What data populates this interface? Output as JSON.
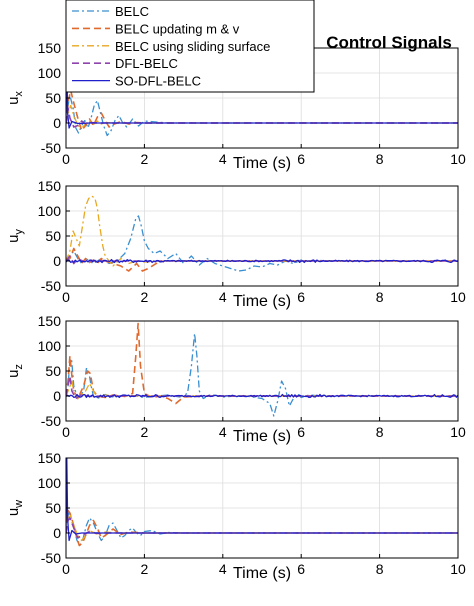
{
  "figure": {
    "title": "Control Signals"
  },
  "legend": {
    "placement": "top-left",
    "entries": [
      {
        "name": "BELC",
        "color": "#3a8fd1",
        "dash": "dash-dot"
      },
      {
        "name": "BELC updating m & v",
        "color": "#e06a2d",
        "dash": "dashed"
      },
      {
        "name": "BELC using sliding surface",
        "color": "#e8a820",
        "dash": "dash-dot"
      },
      {
        "name": "DFL-BELC",
        "color": "#8e44ad",
        "dash": "dashed"
      },
      {
        "name": "SO-DFL-BELC",
        "color": "#1f1fcc",
        "dash": "solid"
      }
    ]
  },
  "chart_data": [
    {
      "type": "line",
      "xlabel": "Time (s)",
      "ylabel_base": "u",
      "ylabel_sub": "x",
      "xlim": [
        0,
        10
      ],
      "ylim": [
        -50,
        150
      ],
      "xticks": [
        0,
        2,
        4,
        6,
        8,
        10
      ],
      "yticks": [
        -50,
        0,
        50,
        100,
        150
      ],
      "grid": true,
      "series": [
        {
          "name": "BELC",
          "x": [
            0,
            0.05,
            0.1,
            0.18,
            0.25,
            0.32,
            0.4,
            0.48,
            0.56,
            0.64,
            0.72,
            0.8,
            0.88,
            0.96,
            1.05,
            1.15,
            1.25,
            1.35,
            1.45,
            1.55,
            1.7,
            1.85,
            2.0,
            2.3,
            2.6,
            3,
            10
          ],
          "y": [
            0,
            35,
            55,
            30,
            -10,
            -20,
            -5,
            5,
            -10,
            10,
            35,
            45,
            20,
            -5,
            -25,
            -15,
            5,
            15,
            0,
            -8,
            8,
            -6,
            4,
            2,
            0,
            0,
            0
          ]
        },
        {
          "name": "BELC updating m & v",
          "x": [
            0,
            0.06,
            0.12,
            0.2,
            0.3,
            0.4,
            0.5,
            0.6,
            0.7,
            0.8,
            0.9,
            1.0,
            1.1,
            1.2,
            1.4,
            1.6,
            1.8,
            2.0,
            2.5,
            10
          ],
          "y": [
            0,
            45,
            65,
            40,
            10,
            -15,
            -5,
            8,
            -5,
            12,
            20,
            5,
            -8,
            -3,
            3,
            -2,
            1,
            0,
            0,
            0
          ]
        },
        {
          "name": "BELC using sliding surface",
          "x": [
            0,
            0.06,
            0.12,
            0.2,
            0.3,
            0.4,
            0.5,
            0.6,
            0.7,
            0.8,
            0.9,
            1.0,
            1.2,
            1.5,
            2.0,
            10
          ],
          "y": [
            0,
            20,
            35,
            15,
            -5,
            -10,
            -2,
            5,
            -3,
            4,
            -2,
            1,
            0,
            0,
            0,
            0
          ]
        },
        {
          "name": "DFL-BELC",
          "x": [
            0,
            0.05,
            0.1,
            0.2,
            0.3,
            0.4,
            0.5,
            0.6,
            0.8,
            1.0,
            10
          ],
          "y": [
            0,
            30,
            10,
            -8,
            -5,
            4,
            -2,
            1,
            0,
            0,
            0
          ]
        },
        {
          "name": "SO-DFL-BELC",
          "x": [
            0,
            0.02,
            0.04,
            0.08,
            0.15,
            0.3,
            0.6,
            10
          ],
          "y": [
            0,
            140,
            20,
            -10,
            3,
            -1,
            0,
            0
          ]
        }
      ]
    },
    {
      "type": "line",
      "xlabel": "Time (s)",
      "ylabel_base": "u",
      "ylabel_sub": "y",
      "xlim": [
        0,
        10
      ],
      "ylim": [
        -50,
        150
      ],
      "xticks": [
        0,
        2,
        4,
        6,
        8,
        10
      ],
      "yticks": [
        -50,
        0,
        50,
        100,
        150
      ],
      "grid": true,
      "series": [
        {
          "name": "BELC",
          "x": [
            0,
            0.1,
            0.2,
            0.3,
            0.4,
            0.5,
            0.7,
            0.9,
            1.1,
            1.3,
            1.5,
            1.65,
            1.78,
            1.85,
            1.92,
            2.0,
            2.1,
            2.25,
            2.4,
            2.6,
            2.8,
            3.0,
            3.2,
            3.4,
            3.6,
            3.8,
            4.0,
            4.2,
            4.4,
            4.6,
            4.8,
            5.0,
            5.2,
            5.4,
            5.6,
            5.8,
            6.0,
            6.2,
            6.5,
            7,
            10
          ],
          "y": [
            0,
            10,
            20,
            5,
            -5,
            5,
            -5,
            5,
            -5,
            0,
            15,
            45,
            85,
            90,
            70,
            40,
            25,
            15,
            20,
            5,
            15,
            -5,
            10,
            -8,
            5,
            -5,
            -10,
            -15,
            -20,
            -18,
            -10,
            -12,
            -5,
            -8,
            0,
            -5,
            2,
            0,
            1,
            0,
            0
          ]
        },
        {
          "name": "BELC updating m & v",
          "x": [
            0,
            0.1,
            0.2,
            0.3,
            0.4,
            0.5,
            0.6,
            0.7,
            0.8,
            0.9,
            1.0,
            1.2,
            1.4,
            1.6,
            1.8,
            1.95,
            2.1,
            2.3,
            2.5,
            3,
            10
          ],
          "y": [
            0,
            5,
            25,
            10,
            -5,
            5,
            -3,
            2,
            -5,
            5,
            0,
            -5,
            -10,
            -20,
            -5,
            -20,
            -15,
            -5,
            0,
            0,
            0
          ]
        },
        {
          "name": "BELC using sliding surface",
          "x": [
            0,
            0.1,
            0.18,
            0.26,
            0.34,
            0.42,
            0.5,
            0.58,
            0.66,
            0.74,
            0.8,
            0.86,
            0.94,
            1.0,
            1.1,
            1.2,
            1.4,
            1.6,
            1.8,
            2.0,
            2.5,
            10
          ],
          "y": [
            0,
            20,
            60,
            45,
            30,
            70,
            110,
            125,
            130,
            125,
            105,
            70,
            30,
            10,
            0,
            -10,
            5,
            -5,
            0,
            -2,
            0,
            0
          ]
        },
        {
          "name": "DFL-BELC",
          "x": [
            0,
            0.1,
            0.2,
            0.3,
            0.5,
            0.7,
            1.0,
            10
          ],
          "y": [
            0,
            10,
            -5,
            4,
            -2,
            1,
            0,
            0
          ]
        },
        {
          "name": "SO-DFL-BELC",
          "noise": true,
          "x": [
            0,
            10
          ],
          "y": [
            0,
            0
          ]
        }
      ]
    },
    {
      "type": "line",
      "xlabel": "Time (s)",
      "ylabel_base": "u",
      "ylabel_sub": "z",
      "xlim": [
        0,
        10
      ],
      "ylim": [
        -50,
        150
      ],
      "xticks": [
        0,
        2,
        4,
        6,
        8,
        10
      ],
      "yticks": [
        -50,
        0,
        50,
        100,
        150
      ],
      "grid": true,
      "series": [
        {
          "name": "BELC",
          "x": [
            0,
            0.05,
            0.1,
            0.14,
            0.2,
            0.3,
            0.45,
            0.52,
            0.58,
            0.64,
            0.7,
            0.8,
            1.0,
            1.2,
            1.5,
            1.8,
            2.0,
            2.3,
            2.6,
            2.9,
            3.1,
            3.2,
            3.28,
            3.34,
            3.4,
            3.5,
            3.7,
            4.0,
            4.5,
            5.0,
            5.2,
            5.3,
            5.4,
            5.5,
            5.6,
            5.7,
            5.8,
            5.9,
            6.0,
            6.2,
            6.5,
            7,
            10
          ],
          "y": [
            0,
            20,
            70,
            75,
            20,
            -5,
            10,
            55,
            50,
            20,
            0,
            -5,
            3,
            -2,
            1,
            0,
            -3,
            0,
            2,
            -2,
            5,
            60,
            125,
            80,
            10,
            -5,
            3,
            -2,
            1,
            -5,
            -15,
            -40,
            -10,
            30,
            15,
            -20,
            -5,
            5,
            -3,
            2,
            0,
            0,
            0
          ]
        },
        {
          "name": "BELC updating m & v",
          "x": [
            0,
            0.05,
            0.1,
            0.15,
            0.2,
            0.3,
            0.45,
            0.55,
            0.62,
            0.7,
            0.8,
            1.0,
            1.2,
            1.5,
            1.7,
            1.78,
            1.84,
            1.9,
            2.0,
            2.2,
            2.4,
            2.6,
            2.8,
            3.0,
            3.5,
            10
          ],
          "y": [
            0,
            30,
            80,
            40,
            10,
            -5,
            20,
            50,
            45,
            10,
            0,
            -3,
            2,
            -1,
            5,
            80,
            145,
            60,
            5,
            -3,
            0,
            -5,
            -15,
            -2,
            0,
            0
          ]
        },
        {
          "name": "BELC using sliding surface",
          "x": [
            0,
            0.08,
            0.15,
            0.2,
            0.3,
            0.5,
            0.6,
            0.7,
            0.8,
            1.0,
            1.3,
            1.6,
            2.0,
            2.5,
            10
          ],
          "y": [
            0,
            15,
            30,
            10,
            -5,
            10,
            25,
            10,
            -3,
            2,
            -1,
            1,
            0,
            0,
            0
          ]
        },
        {
          "name": "DFL-BELC",
          "x": [
            0,
            0.05,
            0.1,
            0.15,
            0.25,
            0.4,
            0.6,
            0.9,
            10
          ],
          "y": [
            0,
            20,
            40,
            10,
            -5,
            3,
            -1,
            0,
            0
          ]
        },
        {
          "name": "SO-DFL-BELC",
          "noise": true,
          "x": [
            0,
            10
          ],
          "y": [
            0,
            0
          ]
        }
      ]
    },
    {
      "type": "line",
      "xlabel": "Time (s)",
      "ylabel_base": "u",
      "ylabel_sub": "w",
      "xlim": [
        0,
        10
      ],
      "ylim": [
        -50,
        150
      ],
      "xticks": [
        0,
        2,
        4,
        6,
        8,
        10
      ],
      "yticks": [
        -50,
        0,
        50,
        100,
        150
      ],
      "grid": true,
      "series": [
        {
          "name": "BELC",
          "x": [
            0,
            0.06,
            0.12,
            0.2,
            0.28,
            0.36,
            0.44,
            0.52,
            0.6,
            0.7,
            0.8,
            0.9,
            1.0,
            1.1,
            1.2,
            1.3,
            1.4,
            1.5,
            1.6,
            1.7,
            1.8,
            1.9,
            2.0,
            2.2,
            2.4,
            2.6,
            3,
            10
          ],
          "y": [
            0,
            40,
            30,
            10,
            -15,
            -25,
            -10,
            15,
            30,
            20,
            0,
            -15,
            -5,
            15,
            20,
            5,
            -10,
            -5,
            5,
            10,
            0,
            -5,
            3,
            5,
            -2,
            1,
            0,
            0
          ]
        },
        {
          "name": "BELC updating m & v",
          "x": [
            0,
            0.05,
            0.1,
            0.18,
            0.26,
            0.34,
            0.42,
            0.5,
            0.6,
            0.7,
            0.8,
            0.9,
            1.0,
            1.2,
            1.4,
            1.6,
            2.0,
            2.5,
            10
          ],
          "y": [
            0,
            45,
            40,
            20,
            -5,
            -25,
            -20,
            -5,
            15,
            25,
            10,
            -10,
            -5,
            8,
            -3,
            2,
            0,
            0,
            0
          ]
        },
        {
          "name": "BELC using sliding surface",
          "x": [
            0,
            0.06,
            0.12,
            0.2,
            0.3,
            0.4,
            0.5,
            0.6,
            0.8,
            1.0,
            1.3,
            10
          ],
          "y": [
            0,
            30,
            35,
            15,
            -5,
            -15,
            -5,
            5,
            -3,
            2,
            0,
            0
          ]
        },
        {
          "name": "DFL-BELC",
          "x": [
            0,
            0.05,
            0.1,
            0.2,
            0.3,
            0.4,
            0.6,
            0.8,
            1.0,
            10
          ],
          "y": [
            0,
            25,
            30,
            10,
            -10,
            -5,
            3,
            -1,
            0,
            0
          ]
        },
        {
          "name": "SO-DFL-BELC",
          "x": [
            0,
            0.02,
            0.04,
            0.08,
            0.15,
            0.25,
            0.4,
            10
          ],
          "y": [
            0,
            150,
            30,
            -15,
            5,
            -2,
            0,
            0
          ]
        }
      ]
    }
  ]
}
